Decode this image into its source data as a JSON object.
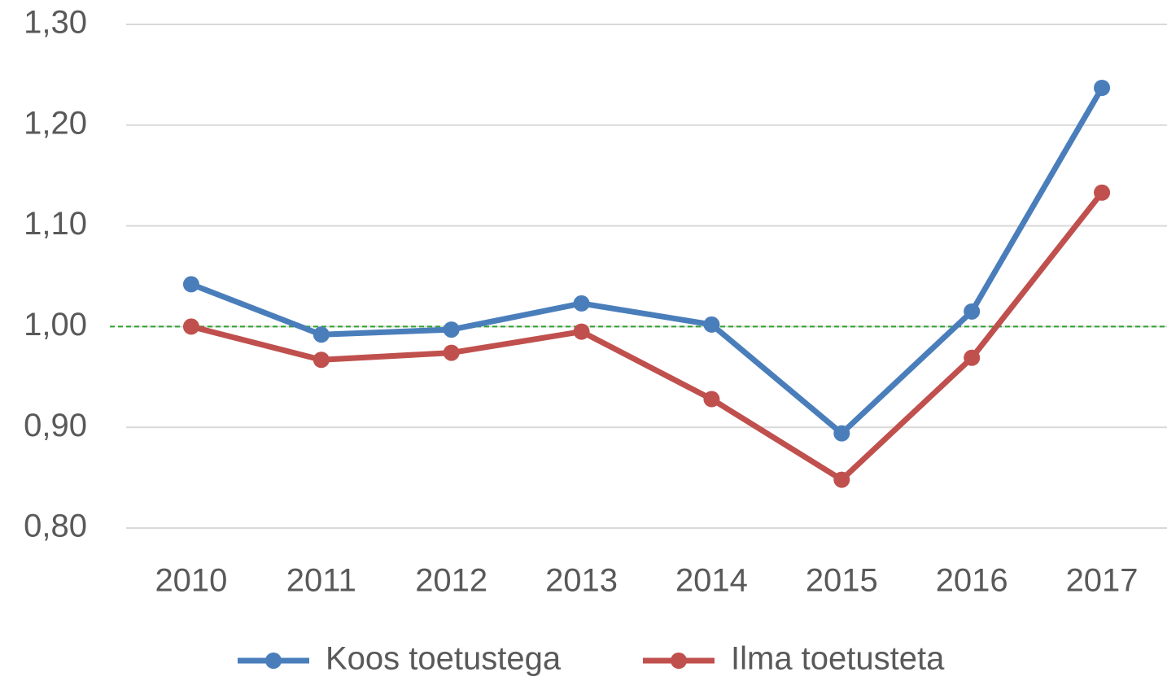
{
  "chart_data": {
    "type": "line",
    "categories": [
      "2010",
      "2011",
      "2012",
      "2013",
      "2014",
      "2015",
      "2016",
      "2017"
    ],
    "series": [
      {
        "name": "Koos toetustega",
        "color": "#4a7ebb",
        "values": [
          1.042,
          0.992,
          0.997,
          1.023,
          1.002,
          0.894,
          1.015,
          1.237
        ]
      },
      {
        "name": "Ilma toetusteta",
        "color": "#c0504d",
        "values": [
          1.0,
          0.967,
          0.974,
          0.995,
          0.928,
          0.848,
          0.969,
          1.133
        ]
      }
    ],
    "reference_line": {
      "value": 1.0,
      "color": "#2ca02c"
    },
    "ylim": [
      0.8,
      1.3
    ],
    "yticks": [
      {
        "value": 0.8,
        "label": "0,80"
      },
      {
        "value": 0.9,
        "label": "0,90"
      },
      {
        "value": 1.0,
        "label": "1,00"
      },
      {
        "value": 1.1,
        "label": "1,10"
      },
      {
        "value": 1.2,
        "label": "1,20"
      },
      {
        "value": 1.3,
        "label": "1,30"
      }
    ],
    "grid": true,
    "legend": "bottom"
  }
}
